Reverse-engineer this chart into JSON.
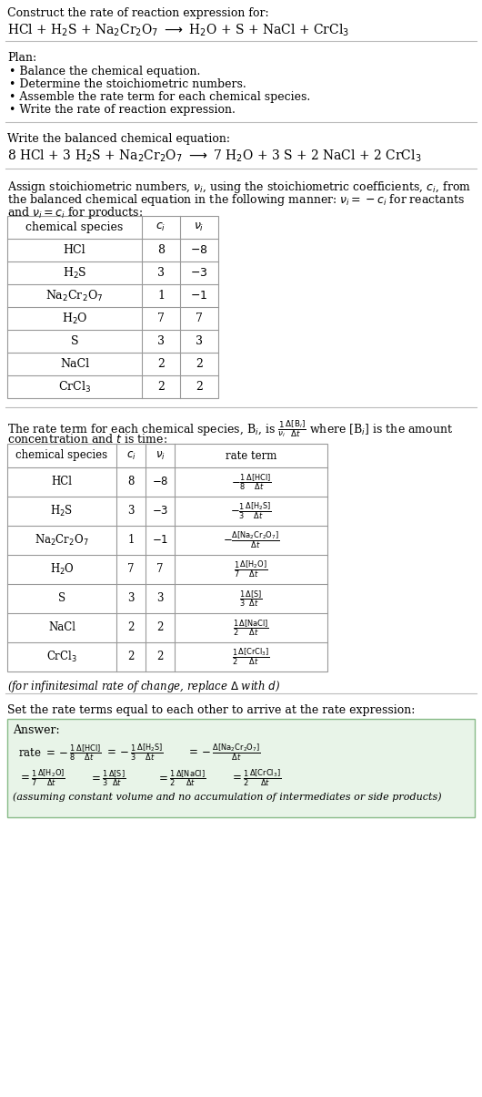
{
  "bg_color": "#ffffff",
  "text_color": "#000000",
  "table_border_color": "#999999",
  "answer_box_color": "#e8f4e8",
  "answer_box_border": "#88bb88",
  "font_size": 9.0,
  "sections": {
    "title": "Construct the rate of reaction expression for:",
    "rxn_unbalanced": "HCl + H$_2$S + Na$_2$Cr$_2$O$_7$ $\\longrightarrow$ H$_2$O + S + NaCl + CrCl$_3$",
    "plan_header": "Plan:",
    "plan_items": [
      "Balance the chemical equation.",
      "Determine the stoichiometric numbers.",
      "Assemble the rate term for each chemical species.",
      "Write the rate of reaction expression."
    ],
    "balanced_header": "Write the balanced chemical equation:",
    "rxn_balanced": "8 HCl + 3 H$_2$S + Na$_2$Cr$_2$O$_7$ $\\longrightarrow$ 7 H$_2$O + 3 S + 2 NaCl + 2 CrCl$_3$",
    "stoich_text1": "Assign stoichiometric numbers, $\\nu_i$, using the stoichiometric coefficients, $c_i$, from",
    "stoich_text2": "the balanced chemical equation in the following manner: $\\nu_i = -c_i$ for reactants",
    "stoich_text3": "and $\\nu_i = c_i$ for products:",
    "table1_cols": [
      "chemical species",
      "$c_i$",
      "$\\nu_i$"
    ],
    "table1_rows": [
      [
        "HCl",
        "8",
        "$-8$"
      ],
      [
        "H$_2$S",
        "3",
        "$-3$"
      ],
      [
        "Na$_2$Cr$_2$O$_7$",
        "1",
        "$-1$"
      ],
      [
        "H$_2$O",
        "7",
        "7"
      ],
      [
        "S",
        "3",
        "3"
      ],
      [
        "NaCl",
        "2",
        "2"
      ],
      [
        "CrCl$_3$",
        "2",
        "2"
      ]
    ],
    "rate_text1": "The rate term for each chemical species, B$_i$, is $\\frac{1}{\\nu_i}\\frac{\\Delta[\\mathrm{B}_i]}{\\Delta t}$ where [B$_i$] is the amount",
    "rate_text2": "concentration and $t$ is time:",
    "table2_cols": [
      "chemical species",
      "$c_i$",
      "$\\nu_i$",
      "rate term"
    ],
    "table2_rows": [
      [
        "HCl",
        "8",
        "$-8$",
        "$-\\frac{1}{8}\\frac{\\Delta[\\mathrm{HCl}]}{\\Delta t}$"
      ],
      [
        "H$_2$S",
        "3",
        "$-3$",
        "$-\\frac{1}{3}\\frac{\\Delta[\\mathrm{H_2S}]}{\\Delta t}$"
      ],
      [
        "Na$_2$Cr$_2$O$_7$",
        "1",
        "$-1$",
        "$-\\frac{\\Delta[\\mathrm{Na_2Cr_2O_7}]}{\\Delta t}$"
      ],
      [
        "H$_2$O",
        "7",
        "7",
        "$\\frac{1}{7}\\frac{\\Delta[\\mathrm{H_2O}]}{\\Delta t}$"
      ],
      [
        "S",
        "3",
        "3",
        "$\\frac{1}{3}\\frac{\\Delta[\\mathrm{S}]}{\\Delta t}$"
      ],
      [
        "NaCl",
        "2",
        "2",
        "$\\frac{1}{2}\\frac{\\Delta[\\mathrm{NaCl}]}{\\Delta t}$"
      ],
      [
        "CrCl$_3$",
        "2",
        "2",
        "$\\frac{1}{2}\\frac{\\Delta[\\mathrm{CrCl_3}]}{\\Delta t}$"
      ]
    ],
    "infinitesimal": "(for infinitesimal rate of change, replace $\\Delta$ with $d$)",
    "set_rate": "Set the rate terms equal to each other to arrive at the rate expression:",
    "answer_label": "Answer:",
    "ans_line1a": "rate $= -\\frac{1}{8}\\frac{\\Delta[\\mathrm{HCl}]}{\\Delta t}$",
    "ans_line1b": "$= -\\frac{1}{3}\\frac{\\Delta[\\mathrm{H_2S}]}{\\Delta t}$",
    "ans_line1c": "$= -\\frac{\\Delta[\\mathrm{Na_2Cr_2O_7}]}{\\Delta t}$",
    "ans_line2a": "$= \\frac{1}{7}\\frac{\\Delta[\\mathrm{H_2O}]}{\\Delta t}$",
    "ans_line2b": "$= \\frac{1}{3}\\frac{\\Delta[\\mathrm{S}]}{\\Delta t}$",
    "ans_line2c": "$= \\frac{1}{2}\\frac{\\Delta[\\mathrm{NaCl}]}{\\Delta t}$",
    "ans_line2d": "$= \\frac{1}{2}\\frac{\\Delta[\\mathrm{CrCl_3}]}{\\Delta t}$",
    "ans_note": "(assuming constant volume and no accumulation of intermediates or side products)"
  }
}
